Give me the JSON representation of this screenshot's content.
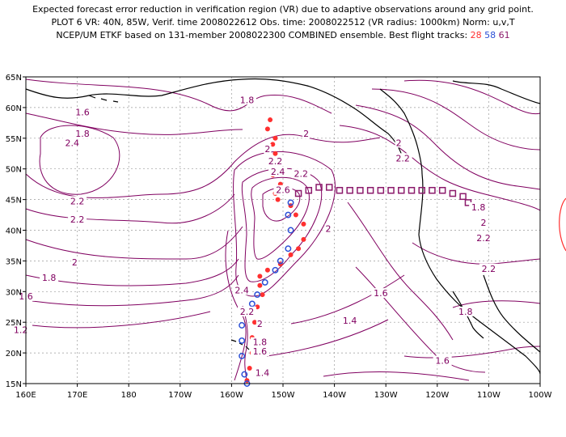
{
  "header": {
    "line1": "Expected forecast error reduction in verification region (VR) due to adaptive observations around any grid point.",
    "line2": "PLOT 6 VR: 40N, 85W, Verif. time 2008022612 Obs. time: 2008022512 (VR radius: 1000km) Norm: u,v,T",
    "line3_prefix": "NCEP/UM ETKF based on 131-member 2008022300 COMBINED ensemble.  Best flight tracks: ",
    "track_red": "28",
    "track_blue": "58",
    "track_purple": "61"
  },
  "colors": {
    "contour": "#800060",
    "track_red": "#ff3030",
    "track_blue": "#2a4fd6",
    "track_purple": "#8b1a6b",
    "coast": "#000000"
  },
  "chart_data": {
    "type": "map",
    "xlim": [
      160,
      260
    ],
    "ylim": [
      15,
      65
    ],
    "x_ticks": [
      "160E",
      "170E",
      "180",
      "170W",
      "160W",
      "150W",
      "140W",
      "130W",
      "120W",
      "110W",
      "100W"
    ],
    "y_ticks": [
      "15N",
      "20N",
      "25N",
      "30N",
      "35N",
      "40N",
      "45N",
      "50N",
      "55N",
      "60N",
      "65N"
    ],
    "grid": true,
    "contour_labels": [
      {
        "text": "2.4",
        "lon": 169.0,
        "lat": 54.0
      },
      {
        "text": "1.6",
        "lon": 171.0,
        "lat": 59.0
      },
      {
        "text": "1.8",
        "lon": 171.0,
        "lat": 55.5
      },
      {
        "text": "1.8",
        "lon": 203.0,
        "lat": 61.0
      },
      {
        "text": "2",
        "lon": 207.0,
        "lat": 53.0
      },
      {
        "text": "2",
        "lon": 214.5,
        "lat": 55.5
      },
      {
        "text": "2.2",
        "lon": 208.5,
        "lat": 51.0
      },
      {
        "text": "2.2",
        "lon": 213.5,
        "lat": 49.0
      },
      {
        "text": "2.4",
        "lon": 209.0,
        "lat": 49.3
      },
      {
        "text": "2.6",
        "lon": 210.0,
        "lat": 46.3
      },
      {
        "text": "2.2",
        "lon": 170.0,
        "lat": 44.5
      },
      {
        "text": "2.2",
        "lon": 170.0,
        "lat": 41.5
      },
      {
        "text": "2",
        "lon": 169.5,
        "lat": 34.5
      },
      {
        "text": "2",
        "lon": 218.8,
        "lat": 40.0
      },
      {
        "text": "1.8",
        "lon": 164.5,
        "lat": 32.0
      },
      {
        "text": "1.6",
        "lon": 160.0,
        "lat": 29.0
      },
      {
        "text": "1.4",
        "lon": 146.5,
        "lat": 27.5
      },
      {
        "text": "1.2",
        "lon": 159.0,
        "lat": 23.5
      },
      {
        "text": "2.4",
        "lon": 202.0,
        "lat": 30.0
      },
      {
        "text": "2.2",
        "lon": 203.0,
        "lat": 26.5
      },
      {
        "text": "2",
        "lon": 205.5,
        "lat": 24.5
      },
      {
        "text": "1.8",
        "lon": 205.5,
        "lat": 21.5
      },
      {
        "text": "1.6",
        "lon": 205.5,
        "lat": 20.0
      },
      {
        "text": "1.4",
        "lon": 206.0,
        "lat": 16.5
      },
      {
        "text": "1.4",
        "lon": 223.0,
        "lat": 25.0
      },
      {
        "text": "1.6",
        "lon": 229.0,
        "lat": 29.5
      },
      {
        "text": "1.6",
        "lon": 241.0,
        "lat": 18.5
      },
      {
        "text": "1.8",
        "lon": 248.0,
        "lat": 43.5
      },
      {
        "text": "2",
        "lon": 249.0,
        "lat": 41.0
      },
      {
        "text": "2.2",
        "lon": 249.0,
        "lat": 38.5
      },
      {
        "text": "2.2",
        "lon": 250.0,
        "lat": 33.5
      },
      {
        "text": "1.8",
        "lon": 245.5,
        "lat": 26.5
      },
      {
        "text": "2.2",
        "lon": 233.3,
        "lat": 51.5
      },
      {
        "text": "2",
        "lon": 232.5,
        "lat": 54.0
      }
    ],
    "tracks": [
      {
        "name": "28",
        "marker": "dot",
        "points": [
          [
            207.5,
            58.0
          ],
          [
            207.0,
            56.5
          ],
          [
            208.5,
            55.0
          ],
          [
            208.0,
            54.0
          ],
          [
            208.5,
            52.5
          ],
          [
            208.5,
            51.0
          ],
          [
            208.0,
            49.0
          ],
          [
            209.5,
            47.5
          ],
          [
            208.5,
            46.0
          ],
          [
            209.0,
            45.0
          ],
          [
            211.5,
            44.0
          ],
          [
            212.5,
            42.5
          ],
          [
            214.0,
            41.0
          ],
          [
            214.0,
            38.5
          ],
          [
            213.0,
            37.0
          ],
          [
            211.5,
            36.0
          ],
          [
            209.5,
            34.5
          ],
          [
            207.0,
            33.5
          ],
          [
            205.5,
            32.5
          ],
          [
            205.5,
            31.0
          ],
          [
            206.0,
            29.5
          ],
          [
            205.0,
            27.5
          ],
          [
            204.5,
            25.0
          ],
          [
            204.0,
            22.5
          ],
          [
            204.0,
            20.0
          ],
          [
            203.5,
            17.5
          ],
          [
            203.0,
            15.5
          ]
        ]
      },
      {
        "name": "58",
        "marker": "circle",
        "points": [
          [
            211.5,
            44.5
          ],
          [
            211.0,
            42.5
          ],
          [
            211.5,
            40.0
          ],
          [
            211.0,
            37.0
          ],
          [
            209.5,
            35.0
          ],
          [
            208.5,
            33.5
          ],
          [
            206.5,
            31.5
          ],
          [
            205.0,
            29.5
          ],
          [
            204.0,
            28.0
          ],
          [
            203.0,
            26.5
          ],
          [
            202.0,
            24.5
          ],
          [
            202.0,
            22.0
          ],
          [
            202.0,
            19.5
          ],
          [
            202.5,
            16.5
          ],
          [
            203.0,
            15.0
          ]
        ]
      },
      {
        "name": "61",
        "marker": "square",
        "points": [
          [
            213.0,
            46.0
          ],
          [
            215.0,
            46.5
          ],
          [
            217.0,
            47.0
          ],
          [
            219.0,
            47.0
          ],
          [
            221.0,
            46.5
          ],
          [
            223.0,
            46.5
          ],
          [
            225.0,
            46.5
          ],
          [
            227.0,
            46.5
          ],
          [
            229.0,
            46.5
          ],
          [
            231.0,
            46.5
          ],
          [
            233.0,
            46.5
          ],
          [
            235.0,
            46.5
          ],
          [
            237.0,
            46.5
          ],
          [
            239.0,
            46.5
          ],
          [
            241.0,
            46.5
          ],
          [
            243.0,
            46.0
          ],
          [
            245.0,
            45.5
          ],
          [
            246.0,
            44.5
          ]
        ]
      }
    ]
  }
}
